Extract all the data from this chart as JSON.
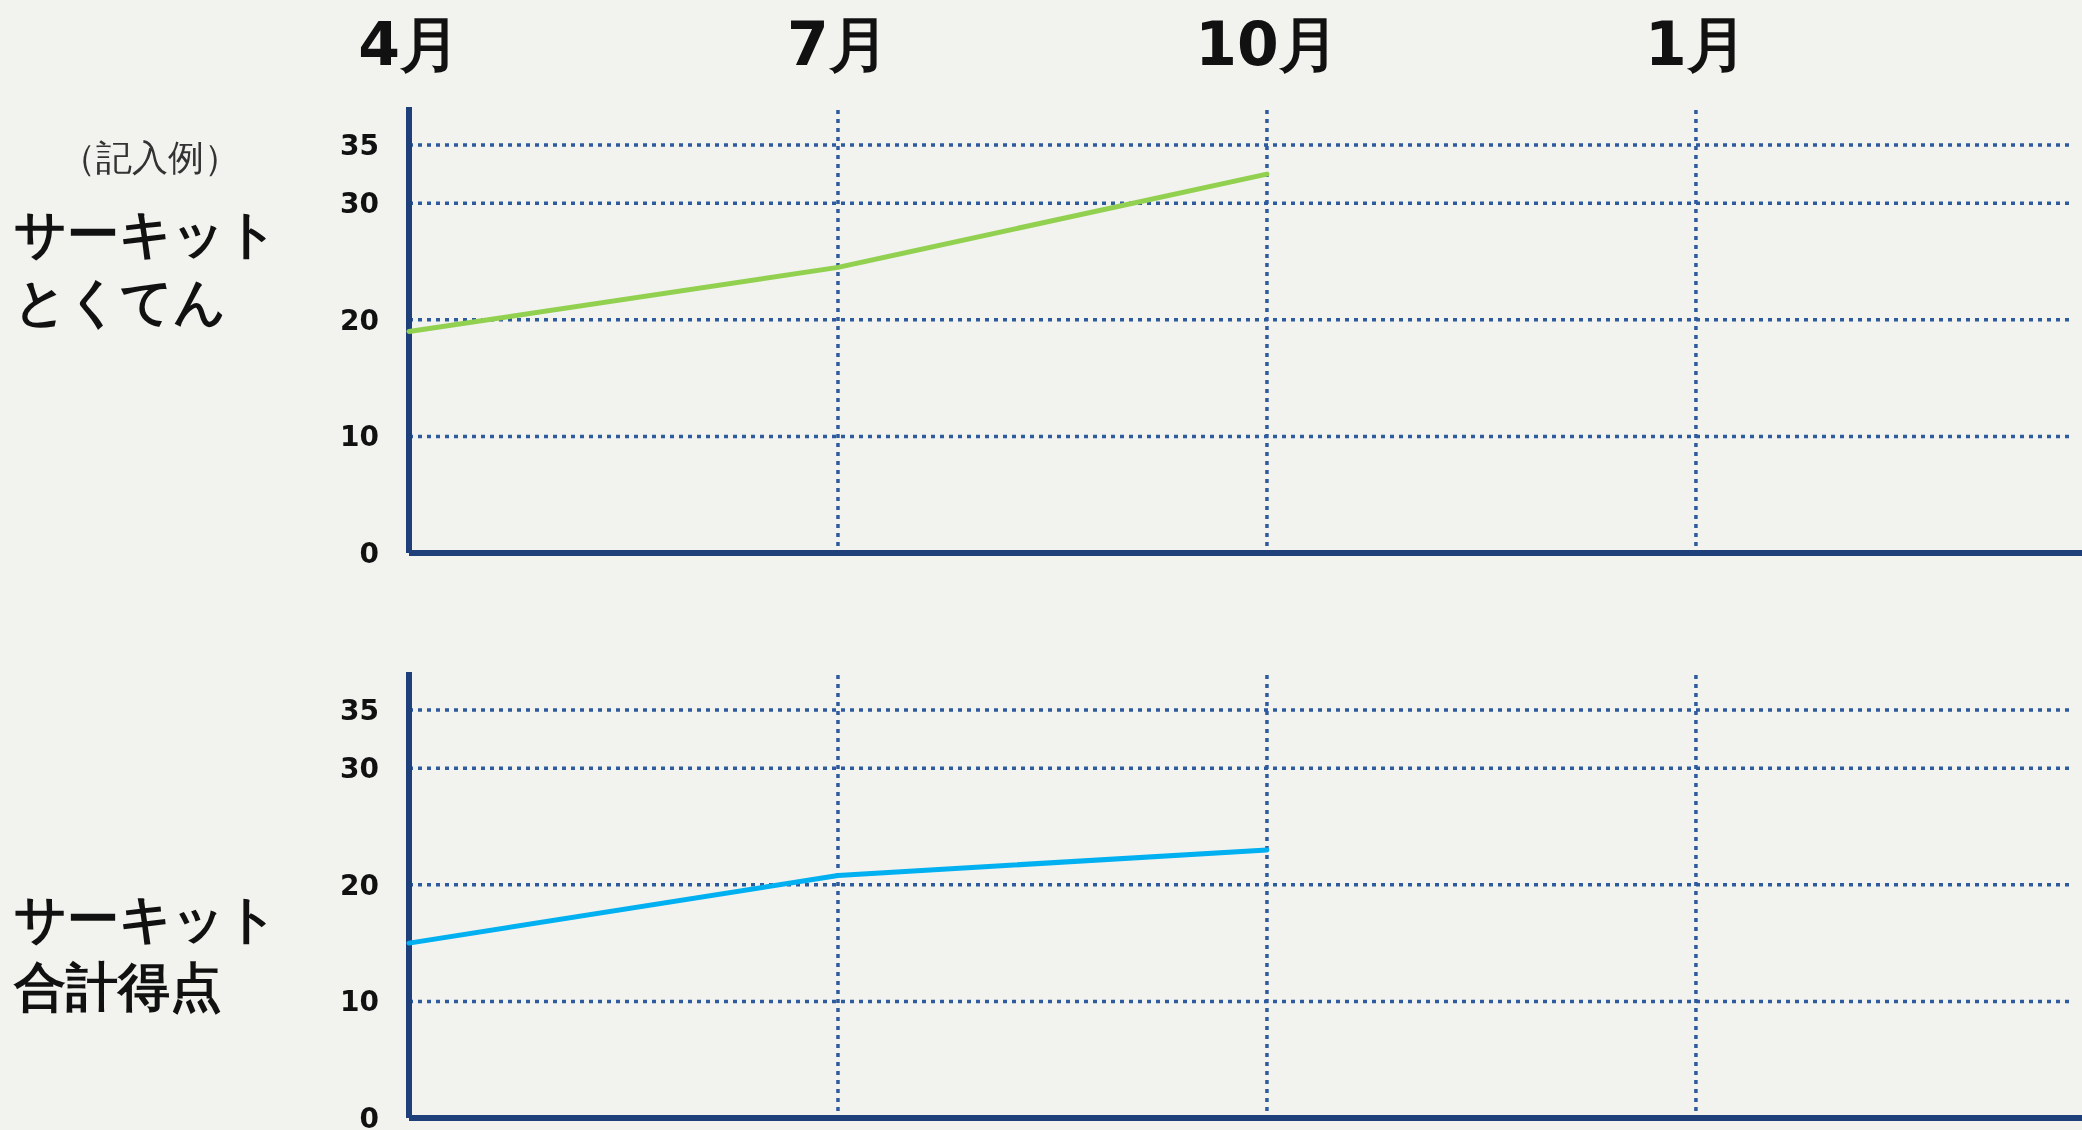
{
  "chart_data": [
    {
      "type": "line",
      "ylabel": "サーキットとくてん",
      "annotations": [
        "（記入例）"
      ],
      "categories": [
        "4月",
        "7月",
        "10月",
        "1月"
      ],
      "ylim": [
        0,
        38
      ],
      "yticks": [
        0,
        10,
        20,
        30,
        35
      ],
      "grid": true,
      "series": [
        {
          "color": "#92d050",
          "values": [
            19,
            24.5,
            32.5,
            null
          ]
        }
      ]
    },
    {
      "type": "line",
      "ylabel": "サーキット合計得点",
      "categories": [
        null,
        null,
        null,
        null
      ],
      "ylim": [
        0,
        38
      ],
      "yticks": [
        0,
        10,
        20,
        30,
        35
      ],
      "grid": true,
      "tick_labels": "y",
      "series": [
        {
          "color": "#00b0f0",
          "values": [
            15,
            20.8,
            23,
            null
          ]
        }
      ]
    }
  ]
}
